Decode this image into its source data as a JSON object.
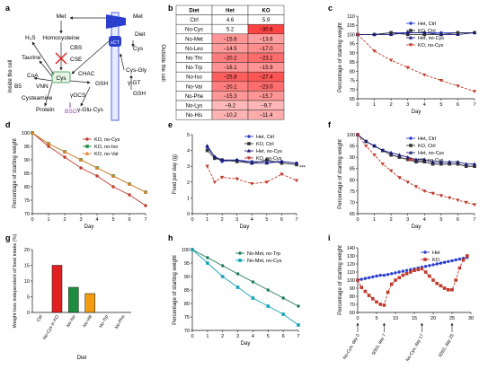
{
  "panel_labels": [
    "a",
    "b",
    "c",
    "d",
    "e",
    "f",
    "g",
    "h",
    "i"
  ],
  "pathway": {
    "left_side_label": "Inside the cell",
    "right_side_label": "Outside the cell",
    "nodes": {
      "met": "Met",
      "homocysteine": "Homocysteine",
      "cbs": "CBS",
      "cse": "CSE",
      "h2s": "H₂S",
      "taurine": "Taurine",
      "coa": "CoA",
      "b5": "B5",
      "vnn": "VNN",
      "cysteamine": "Cysteamine",
      "cys": "Cys",
      "chac": "CHAC",
      "gsh": "GSH",
      "protein": "Protein",
      "gcs": "γGCS",
      "bso": "BSO",
      "glu_cys": "γ-Glu-Cys",
      "xct": "xCT",
      "cys_gly": "Cys-Gly",
      "ggt": "γ-GT",
      "met_out": "Met",
      "diet": "Diet",
      "cys_out": "Cys",
      "gsh_out": "GSH"
    }
  },
  "table": {
    "headers": [
      "Diet",
      "Het",
      "KO"
    ],
    "rows": [
      {
        "diet": "Ctrl",
        "het": "4.6",
        "ko": "5.9"
      },
      {
        "diet": "No-Cys",
        "het": "5.2",
        "ko": "−30.6"
      },
      {
        "diet": "No-Met",
        "het": "−15.6",
        "ko": "−13.6"
      },
      {
        "diet": "No-Leu",
        "het": "−14.5",
        "ko": "−17.0"
      },
      {
        "diet": "No-Thr",
        "het": "−20.2",
        "ko": "−23.1"
      },
      {
        "diet": "No-Trp",
        "het": "−16.1",
        "ko": "−15.9"
      },
      {
        "diet": "No-Iso",
        "het": "−25.8",
        "ko": "−27.4"
      },
      {
        "diet": "No-Val",
        "het": "−20.1",
        "ko": "−23.0"
      },
      {
        "diet": "No-Phe",
        "het": "−15.3",
        "ko": "−15.7"
      },
      {
        "diet": "No-Lys",
        "het": "−9.2",
        "ko": "−9.7"
      },
      {
        "diet": "No-His",
        "het": "−10.2",
        "ko": "−11.4"
      }
    ]
  },
  "chart_data": [
    {
      "panel": "c",
      "type": "line",
      "xlabel": "Day",
      "ylabel": "Percentage of starting weight",
      "xlim": [
        0,
        7
      ],
      "ylim": [
        65,
        110
      ],
      "xticks": [
        0,
        1,
        2,
        3,
        4,
        5,
        6,
        7
      ],
      "yticks": [
        65,
        70,
        75,
        80,
        85,
        90,
        95,
        100,
        105,
        110
      ],
      "x": [
        0,
        1,
        2,
        3,
        4,
        5,
        6,
        7
      ],
      "series": [
        {
          "name": "Het, Ctrl",
          "values": [
            100,
            100,
            101,
            101,
            101,
            101,
            101,
            101
          ],
          "color": "#2b3fcf"
        },
        {
          "name": "KO, Ctrl",
          "values": [
            100,
            100,
            101,
            100,
            100,
            100,
            101,
            101
          ],
          "color": "#333333"
        },
        {
          "name": "Het, no-Cys",
          "values": [
            100,
            100,
            100,
            101,
            101,
            100,
            100,
            101
          ],
          "color": "#1a1a7a"
        },
        {
          "name": "KO, no-Cys",
          "values": [
            100,
            91,
            86,
            82,
            78,
            75,
            72,
            69
          ],
          "color": "#c0392b",
          "dashed": true
        }
      ]
    },
    {
      "panel": "d",
      "type": "line",
      "xlabel": "Day",
      "ylabel": "Percentage of starting weight",
      "xlim": [
        0,
        7
      ],
      "ylim": [
        70,
        100
      ],
      "xticks": [
        0,
        1,
        2,
        3,
        4,
        5,
        6,
        7
      ],
      "yticks": [
        70,
        75,
        80,
        85,
        90,
        95,
        100
      ],
      "x": [
        0,
        1,
        2,
        3,
        4,
        5,
        6,
        7
      ],
      "series": [
        {
          "name": "KO, no-Cys",
          "values": [
            100,
            95,
            91,
            87,
            84,
            80,
            77,
            73
          ],
          "color": "#c0392b"
        },
        {
          "name": "KO, no-Iso",
          "values": [
            100,
            96,
            93,
            90,
            87,
            84,
            81,
            78
          ],
          "color": "#1e8e3e"
        },
        {
          "name": "KO, no-Val",
          "values": [
            100,
            96,
            93,
            90,
            87,
            84,
            81,
            78
          ],
          "color": "#e67e22"
        }
      ]
    },
    {
      "panel": "e",
      "type": "line",
      "xlabel": "Day",
      "ylabel": "Food per day (g)",
      "xlim": [
        0,
        7
      ],
      "ylim": [
        0,
        5
      ],
      "xticks": [
        0,
        1,
        2,
        3,
        4,
        5,
        6,
        7
      ],
      "yticks": [
        0,
        1,
        2,
        3,
        4,
        5
      ],
      "x": [
        1,
        1.5,
        2,
        3,
        4,
        5,
        6,
        7
      ],
      "annotation": "***",
      "series": [
        {
          "name": "Het, Ctrl",
          "values": [
            4.2,
            3.6,
            3.3,
            3.4,
            3.3,
            3.3,
            3.3,
            3.2
          ],
          "color": "#2b3fcf"
        },
        {
          "name": "KO, Ctrl",
          "values": [
            4.0,
            3.5,
            3.4,
            3.3,
            3.2,
            3.4,
            3.2,
            3.1
          ],
          "color": "#333333"
        },
        {
          "name": "Het, no-Cys",
          "values": [
            4.3,
            3.6,
            3.4,
            3.4,
            3.2,
            3.2,
            3.3,
            3.2
          ],
          "color": "#1a1a7a"
        },
        {
          "name": "KO, no-Cys",
          "values": [
            3.0,
            2.0,
            2.3,
            2.2,
            1.9,
            2.0,
            2.5,
            2.1
          ],
          "color": "#c0392b",
          "dashed": true
        }
      ]
    },
    {
      "panel": "f",
      "type": "line",
      "xlabel": "Day",
      "ylabel": "Percentage of starting weight",
      "xlim": [
        0,
        7
      ],
      "ylim": [
        65,
        100
      ],
      "xticks": [
        0,
        1,
        2,
        3,
        4,
        5,
        6,
        7
      ],
      "yticks": [
        65,
        70,
        75,
        80,
        85,
        90,
        95,
        100
      ],
      "x": [
        0,
        0.5,
        1,
        1.5,
        2,
        2.5,
        3,
        3.5,
        4,
        4.5,
        5,
        5.5,
        6,
        6.5,
        7
      ],
      "series": [
        {
          "name": "Het, Ctrl",
          "values": [
            100,
            97,
            95,
            93,
            91,
            90,
            89,
            88,
            88,
            87,
            87,
            87,
            87,
            86,
            86
          ],
          "color": "#2b3fcf"
        },
        {
          "name": "KO, Ctrl",
          "values": [
            100,
            97,
            95,
            93,
            91,
            90,
            89,
            88,
            88,
            87,
            87,
            87,
            87,
            86,
            86
          ],
          "color": "#333333"
        },
        {
          "name": "Het, no-Cys",
          "values": [
            100,
            97,
            95,
            93,
            92,
            91,
            90,
            89,
            89,
            88,
            88,
            88,
            88,
            87,
            87
          ],
          "color": "#1a1a7a"
        },
        {
          "name": "KO, no-Cys",
          "values": [
            100,
            95,
            91,
            87,
            84,
            81,
            79,
            77,
            75,
            74,
            73,
            72,
            71,
            70,
            69
          ],
          "color": "#c0392b",
          "dashed": true
        }
      ]
    },
    {
      "panel": "g",
      "type": "bar",
      "xlabel": "Diet",
      "ylabel": "Weight loss independent of food intake (%)",
      "ylim": [
        0,
        20
      ],
      "yticks": [
        0,
        5,
        10,
        15,
        20
      ],
      "categories": [
        "Ctrl",
        "No-Cys in KO",
        "No-Iso",
        "No-Val",
        "No-Trp",
        "No-Phe"
      ],
      "values": [
        0,
        15,
        8,
        6,
        0,
        0
      ],
      "colors": [
        "#7f8c8d",
        "#e02020",
        "#1e8e3e",
        "#f39c12",
        "#2b3fcf",
        "#8e44ad"
      ]
    },
    {
      "panel": "h",
      "type": "line",
      "xlabel": "Day",
      "ylabel": "Percentage of starting weight",
      "xlim": [
        0,
        7
      ],
      "ylim": [
        70,
        100
      ],
      "xticks": [
        0,
        1,
        2,
        3,
        4,
        5,
        6,
        7
      ],
      "yticks": [
        70,
        75,
        80,
        85,
        90,
        95,
        100
      ],
      "x": [
        0,
        1,
        2,
        3,
        4,
        5,
        6,
        7
      ],
      "series": [
        {
          "name": "No-Met, no-Trp",
          "values": [
            100,
            97,
            94,
            91,
            88,
            85,
            82,
            79
          ],
          "color": "#1e7a5a"
        },
        {
          "name": "No-Met, no-Cys",
          "values": [
            100,
            95,
            90,
            86,
            82,
            79,
            76,
            72
          ],
          "color": "#17a2b8"
        }
      ]
    },
    {
      "panel": "i",
      "type": "line",
      "xlabel": "",
      "ylabel": "Percentage of starting weight",
      "xlim": [
        0,
        30
      ],
      "ylim": [
        60,
        140
      ],
      "xticks": [
        0,
        5,
        10,
        15,
        20,
        25,
        30
      ],
      "yticks": [
        60,
        70,
        80,
        90,
        100,
        110,
        120,
        130,
        140
      ],
      "annotations": [
        "No-Cys, day 0",
        "5053, day 7",
        "No-Cys, day 17",
        "5053, day 25"
      ],
      "series": [
        {
          "name": "Het",
          "x": [
            0,
            1,
            2,
            3,
            4,
            5,
            6,
            7,
            8,
            9,
            10,
            11,
            12,
            13,
            14,
            15,
            16,
            17,
            18,
            19,
            20,
            21,
            22,
            23,
            24,
            25,
            26,
            27,
            28,
            29
          ],
          "values": [
            100,
            101,
            102,
            103,
            104,
            105,
            106,
            106,
            107,
            108,
            109,
            110,
            111,
            112,
            113,
            114,
            115,
            116,
            117,
            118,
            119,
            120,
            121,
            122,
            123,
            124,
            125,
            126,
            127,
            128
          ],
          "color": "#2b3fcf",
          "dashed": true
        },
        {
          "name": "KO",
          "x": [
            0,
            1,
            2,
            3,
            4,
            5,
            6,
            7,
            8,
            9,
            10,
            11,
            12,
            13,
            14,
            15,
            16,
            17,
            18,
            19,
            20,
            21,
            22,
            23,
            24,
            25,
            26,
            27,
            28,
            29
          ],
          "values": [
            100,
            91,
            86,
            81,
            77,
            73,
            70,
            69,
            85,
            95,
            100,
            103,
            106,
            108,
            110,
            112,
            113,
            114,
            110,
            105,
            100,
            96,
            93,
            90,
            88,
            88,
            100,
            115,
            125,
            130
          ],
          "color": "#c0392b",
          "dashed": true
        }
      ]
    }
  ]
}
